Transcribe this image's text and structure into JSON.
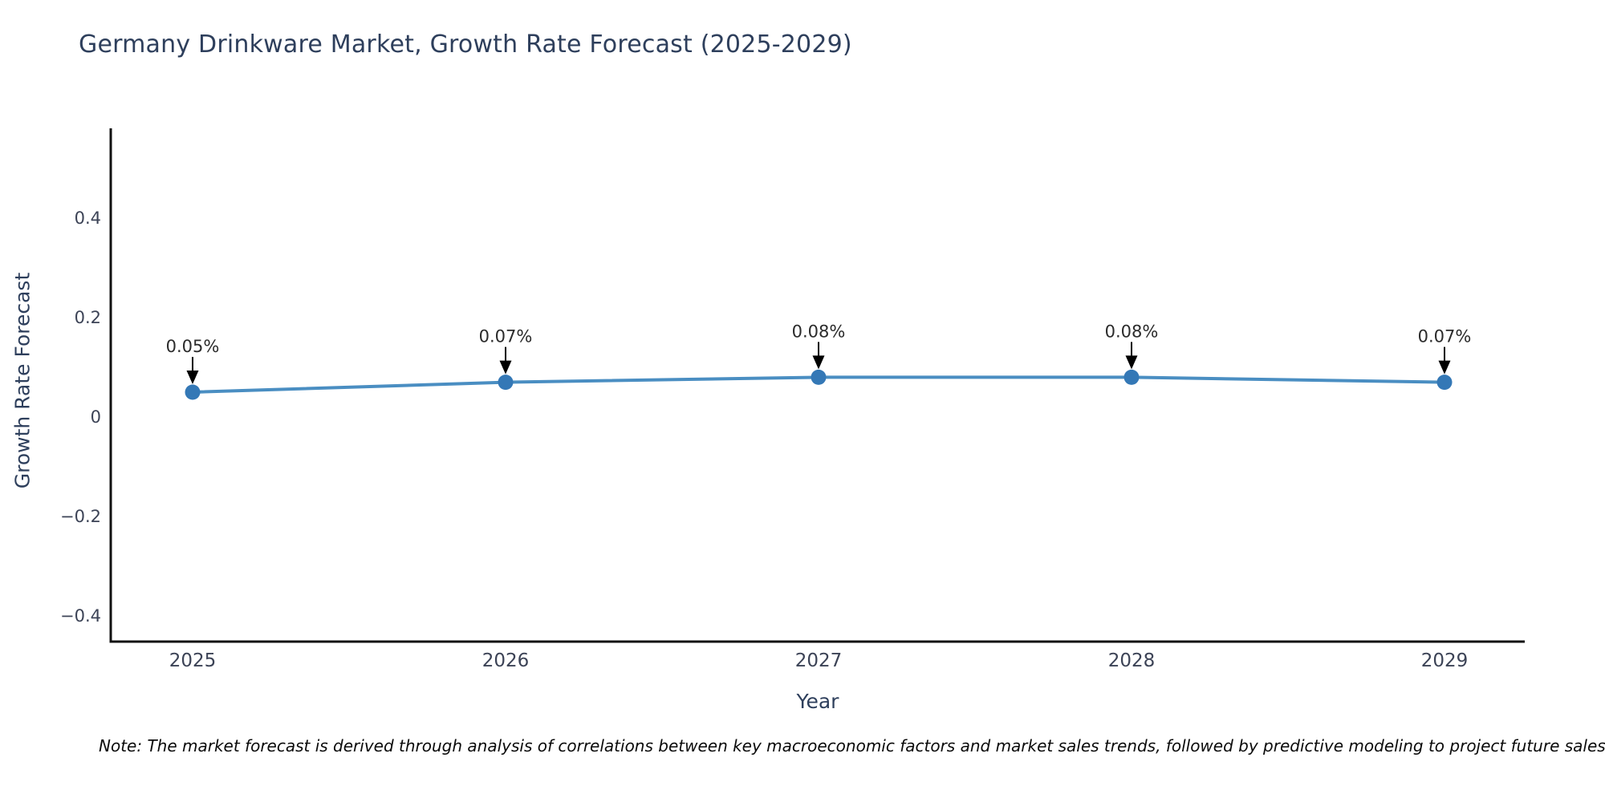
{
  "page": {
    "background": "#ffffff"
  },
  "note": "Note: The market forecast is derived through analysis of correlations between key macroeconomic factors and market sales trends, followed by predictive modeling to project future sales.",
  "chart_data": {
    "type": "line",
    "title": "Germany Drinkware Market, Growth Rate Forecast (2025-2029)",
    "xlabel": "Year",
    "ylabel": "Growth Rate Forecast",
    "x": [
      2025,
      2026,
      2027,
      2028,
      2029
    ],
    "series": [
      {
        "name": "Growth Rate Forecast",
        "values": [
          0.05,
          0.07,
          0.08,
          0.08,
          0.07
        ]
      }
    ],
    "point_labels": [
      "0.05%",
      "0.07%",
      "0.08%",
      "0.08%",
      "0.07%"
    ],
    "xtick_labels": [
      "2025",
      "2026",
      "2027",
      "2028",
      "2029"
    ],
    "yticks": [
      0.4,
      0.2,
      0,
      -0.2,
      -0.4
    ],
    "ytick_labels": [
      "0.4",
      "0.2",
      "0",
      "−0.2",
      "−0.4"
    ],
    "ylim": [
      -0.45,
      0.58
    ],
    "grid": false,
    "legend": "none",
    "annotation_style": "arrow-down-to-point",
    "colors": {
      "line": "#4a8ec2",
      "marker": "#3478b6",
      "spine": "#111111",
      "axis_text": "#3c4356",
      "title_text": "#2e3f5c",
      "annotation_text": "#2b2b2b",
      "arrow": "#000000"
    }
  }
}
